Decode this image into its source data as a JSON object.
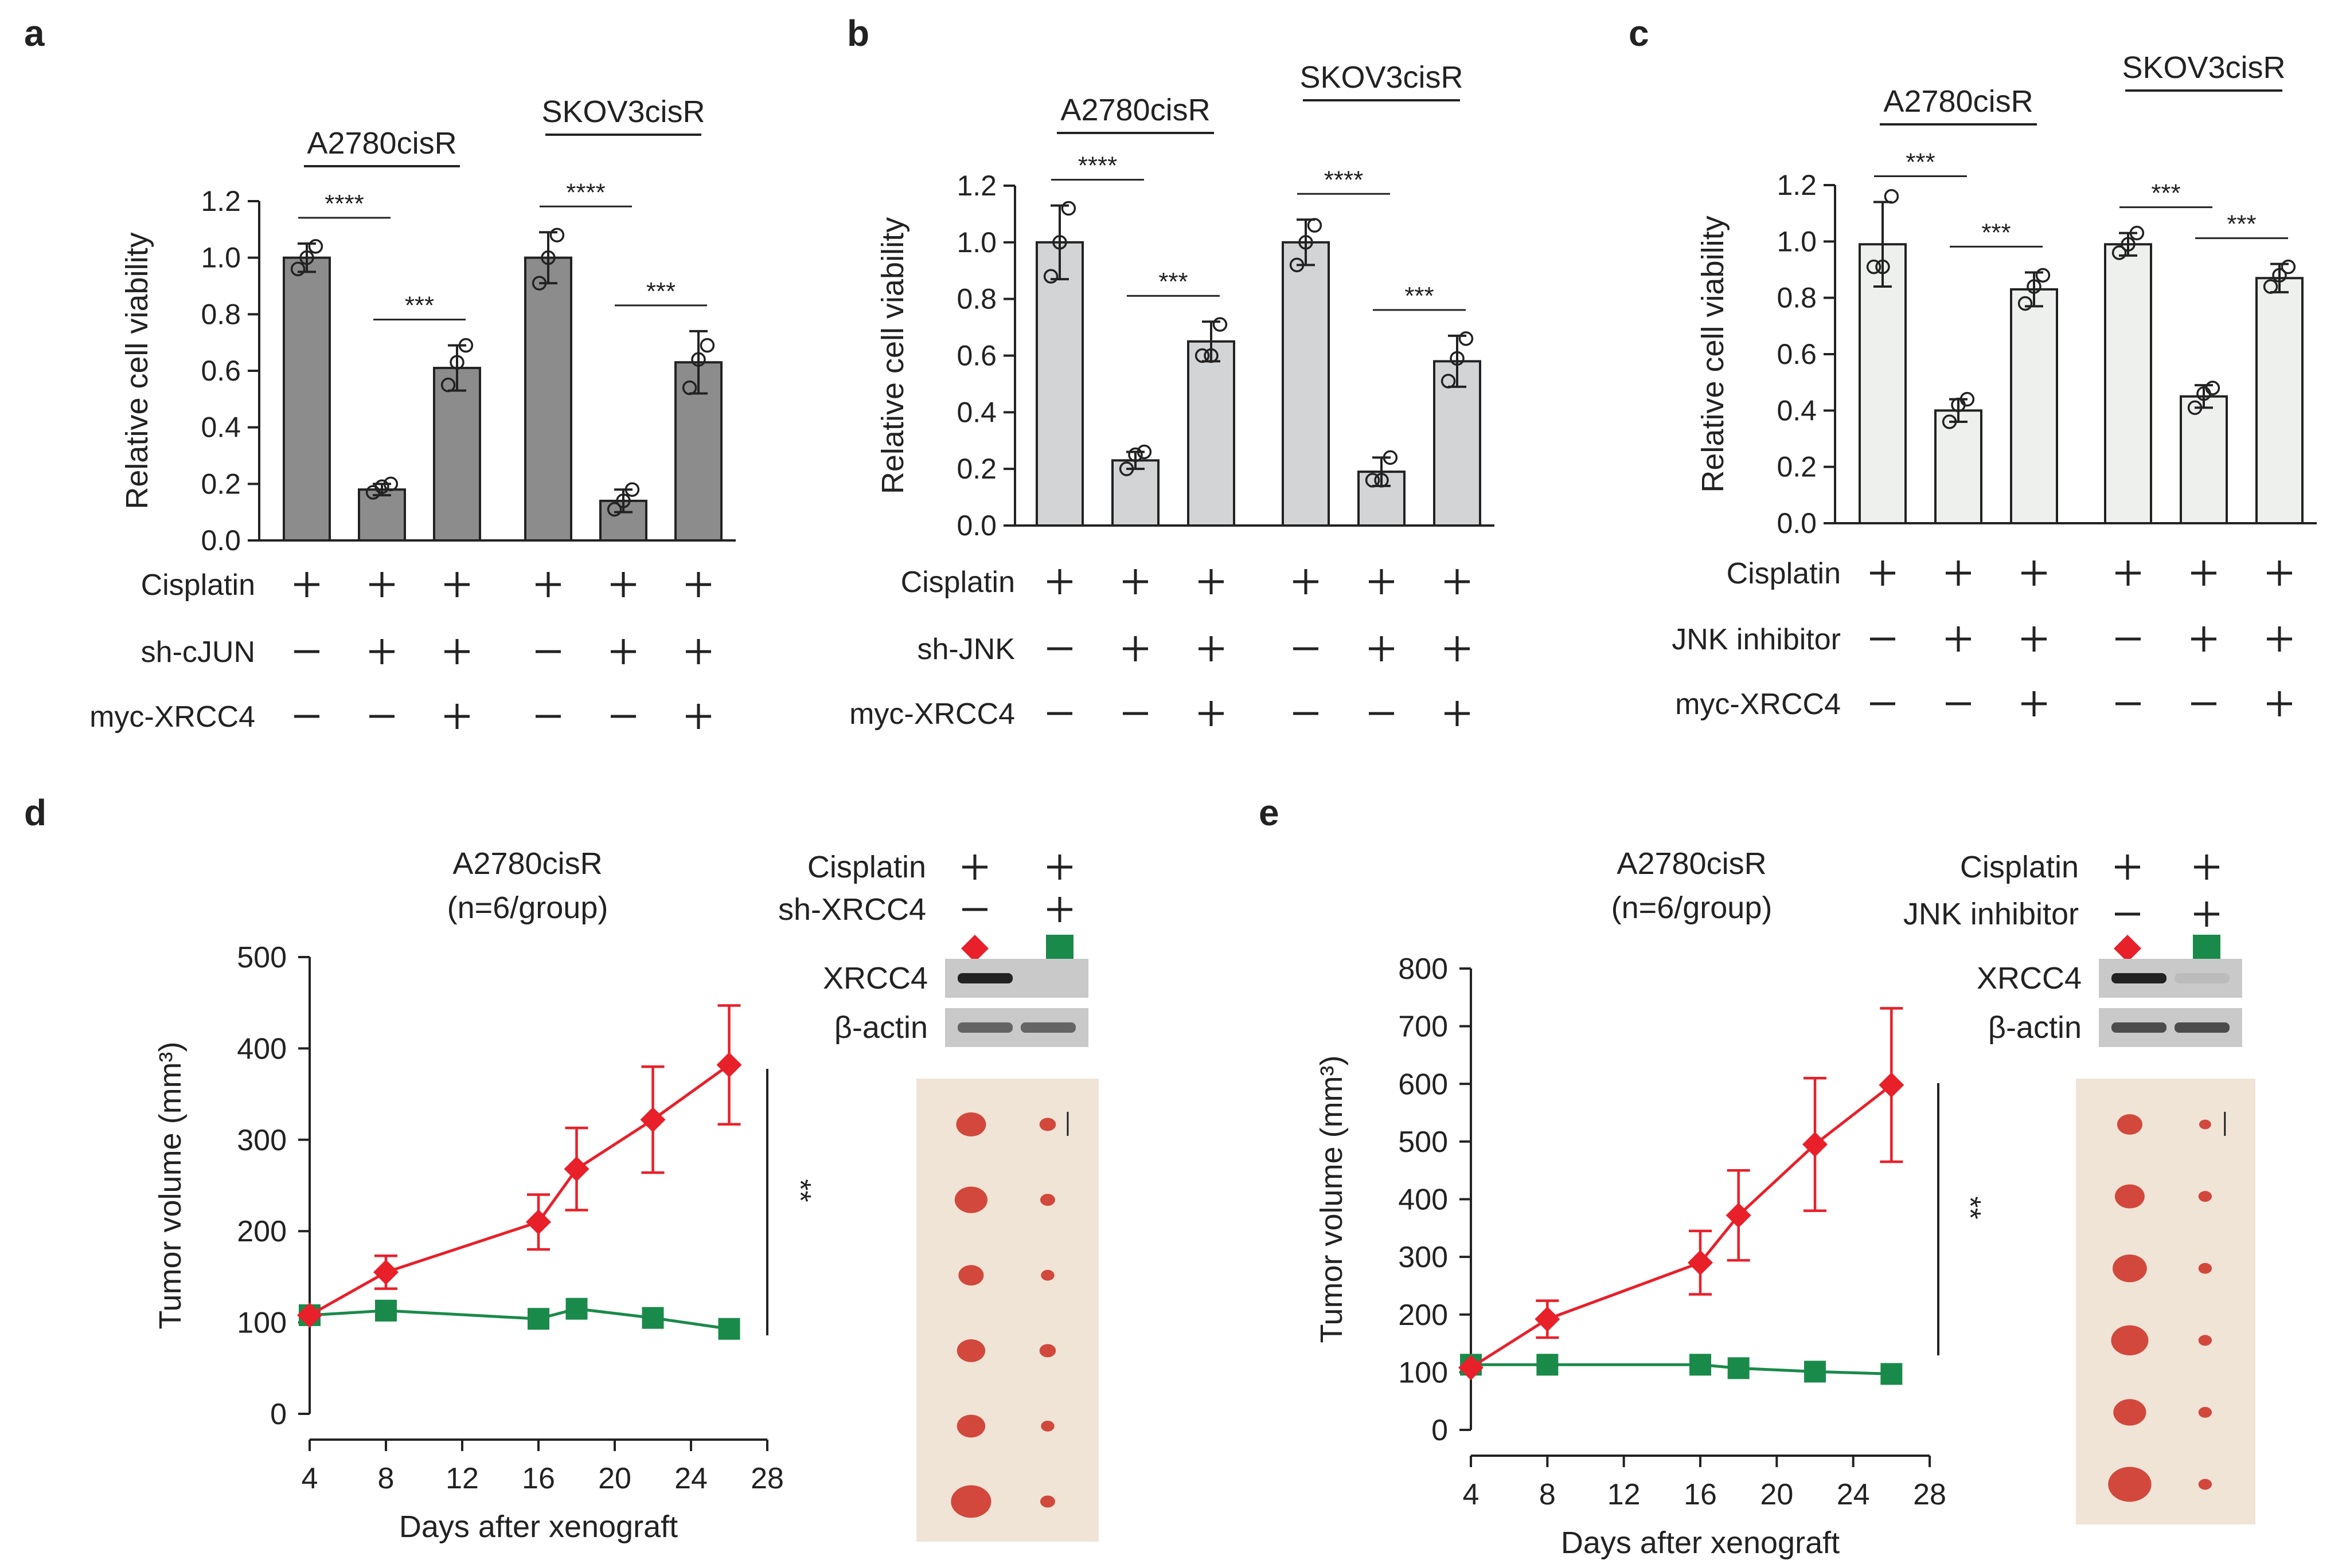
{
  "panel_labels": [
    "a",
    "b",
    "c",
    "d",
    "e"
  ],
  "colors": {
    "bar_a": "#8c8c8c",
    "bar_b": "#d3d4d6",
    "bar_c": "#eef0ee",
    "red": "#e8202a",
    "green": "#1a8a4a",
    "tissue_bg": "#efe4d6",
    "tumor": "#d2483d"
  },
  "chart_data": [
    {
      "id": "a",
      "type": "bar",
      "ylabel": "Relative cell viability",
      "ylim": [
        0,
        1.2
      ],
      "yticks": [
        "0.0",
        "0.2",
        "0.4",
        "0.6",
        "0.8",
        "1.0",
        "1.2"
      ],
      "groups": [
        "A2780cisR",
        "SKOV3cisR"
      ],
      "values": [
        1.0,
        0.18,
        0.61,
        1.0,
        0.14,
        0.63
      ],
      "errors": [
        0.05,
        0.02,
        0.08,
        0.09,
        0.04,
        0.11
      ],
      "points": [
        [
          0.96,
          1.0,
          1.04
        ],
        [
          0.17,
          0.19,
          0.2
        ],
        [
          0.55,
          0.63,
          0.69
        ],
        [
          0.91,
          1.0,
          1.08
        ],
        [
          0.11,
          0.14,
          0.18
        ],
        [
          0.54,
          0.64,
          0.69
        ]
      ],
      "brackets": [
        {
          "from": 0,
          "to": 1,
          "label": "****"
        },
        {
          "from": 1,
          "to": 2,
          "label": "***"
        },
        {
          "from": 3,
          "to": 4,
          "label": "****"
        },
        {
          "from": 4,
          "to": 5,
          "label": "***"
        }
      ],
      "conditions": [
        {
          "label": "Cisplatin",
          "marks": [
            "+",
            "+",
            "+",
            "+",
            "+",
            "+"
          ]
        },
        {
          "label": "sh-cJUN",
          "marks": [
            "—",
            "+",
            "+",
            "—",
            "+",
            "+"
          ]
        },
        {
          "label": "myc-XRCC4",
          "marks": [
            "—",
            "—",
            "+",
            "—",
            "—",
            "+"
          ]
        }
      ]
    },
    {
      "id": "b",
      "type": "bar",
      "ylabel": "Relative cell viability",
      "ylim": [
        0,
        1.2
      ],
      "yticks": [
        "0.0",
        "0.2",
        "0.4",
        "0.6",
        "0.8",
        "1.0",
        "1.2"
      ],
      "groups": [
        "A2780cisR",
        "SKOV3cisR"
      ],
      "values": [
        1.0,
        0.23,
        0.65,
        1.0,
        0.19,
        0.58
      ],
      "errors": [
        0.13,
        0.03,
        0.07,
        0.08,
        0.05,
        0.09
      ],
      "points": [
        [
          0.88,
          1.0,
          1.12
        ],
        [
          0.2,
          0.25,
          0.26
        ],
        [
          0.6,
          0.6,
          0.71
        ],
        [
          0.92,
          1.0,
          1.06
        ],
        [
          0.16,
          0.16,
          0.24
        ],
        [
          0.51,
          0.59,
          0.66
        ]
      ],
      "brackets": [
        {
          "from": 0,
          "to": 1,
          "label": "****"
        },
        {
          "from": 1,
          "to": 2,
          "label": "***"
        },
        {
          "from": 3,
          "to": 4,
          "label": "****"
        },
        {
          "from": 4,
          "to": 5,
          "label": "***"
        }
      ],
      "conditions": [
        {
          "label": "Cisplatin",
          "marks": [
            "+",
            "+",
            "+",
            "+",
            "+",
            "+"
          ]
        },
        {
          "label": "sh-JNK",
          "marks": [
            "—",
            "+",
            "+",
            "—",
            "+",
            "+"
          ]
        },
        {
          "label": "myc-XRCC4",
          "marks": [
            "—",
            "—",
            "+",
            "—",
            "—",
            "+"
          ]
        }
      ]
    },
    {
      "id": "c",
      "type": "bar",
      "ylabel": "Relative cell viability",
      "ylim": [
        0,
        1.2
      ],
      "yticks": [
        "0.0",
        "0.2",
        "0.4",
        "0.6",
        "0.8",
        "1.0",
        "1.2"
      ],
      "groups": [
        "A2780cisR",
        "SKOV3cisR"
      ],
      "values": [
        0.99,
        0.4,
        0.83,
        0.99,
        0.45,
        0.87
      ],
      "errors": [
        0.15,
        0.04,
        0.06,
        0.04,
        0.04,
        0.05
      ],
      "points": [
        [
          0.91,
          0.91,
          1.16
        ],
        [
          0.36,
          0.42,
          0.44
        ],
        [
          0.78,
          0.84,
          0.88
        ],
        [
          0.96,
          0.99,
          1.03
        ],
        [
          0.41,
          0.46,
          0.48
        ],
        [
          0.84,
          0.88,
          0.91
        ]
      ],
      "brackets": [
        {
          "from": 0,
          "to": 1,
          "label": "***"
        },
        {
          "from": 1,
          "to": 2,
          "label": "***"
        },
        {
          "from": 3,
          "to": 4,
          "label": "***"
        },
        {
          "from": 4,
          "to": 5,
          "label": "***"
        }
      ],
      "conditions": [
        {
          "label": "Cisplatin",
          "marks": [
            "+",
            "+",
            "+",
            "+",
            "+",
            "+"
          ]
        },
        {
          "label": "JNK inhibitor",
          "marks": [
            "—",
            "+",
            "+",
            "—",
            "+",
            "+"
          ]
        },
        {
          "label": "myc-XRCC4",
          "marks": [
            "—",
            "—",
            "+",
            "—",
            "—",
            "+"
          ]
        }
      ]
    },
    {
      "id": "d",
      "type": "line",
      "title": "A2780cisR",
      "subtitle": "(n=6/group)",
      "xlabel": "Days after xenograft",
      "ylabel": "Tumor volume (mm³)",
      "xlim": [
        4,
        28
      ],
      "xticks": [
        4,
        8,
        12,
        16,
        20,
        24,
        28
      ],
      "ylim": [
        0,
        500
      ],
      "yticks": [
        0,
        100,
        200,
        300,
        400,
        500
      ],
      "significance": "**",
      "series": [
        {
          "name": "Cisplatin",
          "color": "red",
          "marker": "diamond",
          "x": [
            4,
            8,
            16,
            18,
            22,
            26
          ],
          "y": [
            108,
            155,
            210,
            268,
            322,
            382
          ],
          "err": [
            0,
            18,
            30,
            45,
            58,
            65
          ]
        },
        {
          "name": "Cisplatin + sh-XRCC4",
          "color": "green",
          "marker": "square",
          "x": [
            4,
            8,
            16,
            18,
            22,
            26
          ],
          "y": [
            108,
            113,
            104,
            115,
            105,
            93
          ],
          "err": [
            0,
            0,
            0,
            0,
            0,
            0
          ]
        }
      ],
      "legend": {
        "rows": [
          {
            "label": "Cisplatin",
            "marks": [
              "+",
              "+"
            ]
          },
          {
            "label": "sh-XRCC4",
            "marks": [
              "—",
              "+"
            ]
          }
        ]
      },
      "blot": {
        "rows": [
          "XRCC4",
          "β-actin"
        ],
        "intensity": [
          [
            1,
            0
          ],
          [
            0.6,
            0.6
          ]
        ]
      },
      "tumor_sizes": [
        [
          1.0,
          0.55
        ],
        [
          1.1,
          0.5
        ],
        [
          0.85,
          0.45
        ],
        [
          0.95,
          0.55
        ],
        [
          0.95,
          0.45
        ],
        [
          1.35,
          0.5
        ]
      ]
    },
    {
      "id": "e",
      "type": "line",
      "title": "A2780cisR",
      "subtitle": "(n=6/group)",
      "xlabel": "Days after xenograft",
      "ylabel": "Tumor volume (mm³)",
      "xlim": [
        4,
        28
      ],
      "xticks": [
        4,
        8,
        12,
        16,
        20,
        24,
        28
      ],
      "ylim": [
        0,
        800
      ],
      "yticks": [
        0,
        100,
        200,
        300,
        400,
        500,
        600,
        700,
        800
      ],
      "significance": "**",
      "series": [
        {
          "name": "Cisplatin",
          "color": "red",
          "marker": "diamond",
          "x": [
            4,
            8,
            16,
            18,
            22,
            26
          ],
          "y": [
            108,
            192,
            290,
            372,
            495,
            598
          ],
          "err": [
            0,
            32,
            55,
            78,
            115,
            133
          ]
        },
        {
          "name": "Cisplatin + JNK inhibitor",
          "color": "green",
          "marker": "square",
          "x": [
            4,
            8,
            16,
            18,
            22,
            26
          ],
          "y": [
            113,
            113,
            113,
            107,
            101,
            97
          ],
          "err": [
            0,
            0,
            0,
            0,
            0,
            0
          ]
        }
      ],
      "legend": {
        "rows": [
          {
            "label": "Cisplatin",
            "marks": [
              "+",
              "+"
            ]
          },
          {
            "label": "JNK inhibitor",
            "marks": [
              "—",
              "+"
            ]
          }
        ]
      },
      "blot": {
        "rows": [
          "XRCC4",
          "β-actin"
        ],
        "intensity": [
          [
            1,
            0.08
          ],
          [
            0.75,
            0.75
          ]
        ]
      },
      "tumor_sizes": [
        [
          0.85,
          0.4
        ],
        [
          1.0,
          0.45
        ],
        [
          1.15,
          0.45
        ],
        [
          1.25,
          0.45
        ],
        [
          1.1,
          0.45
        ],
        [
          1.45,
          0.45
        ]
      ]
    }
  ]
}
